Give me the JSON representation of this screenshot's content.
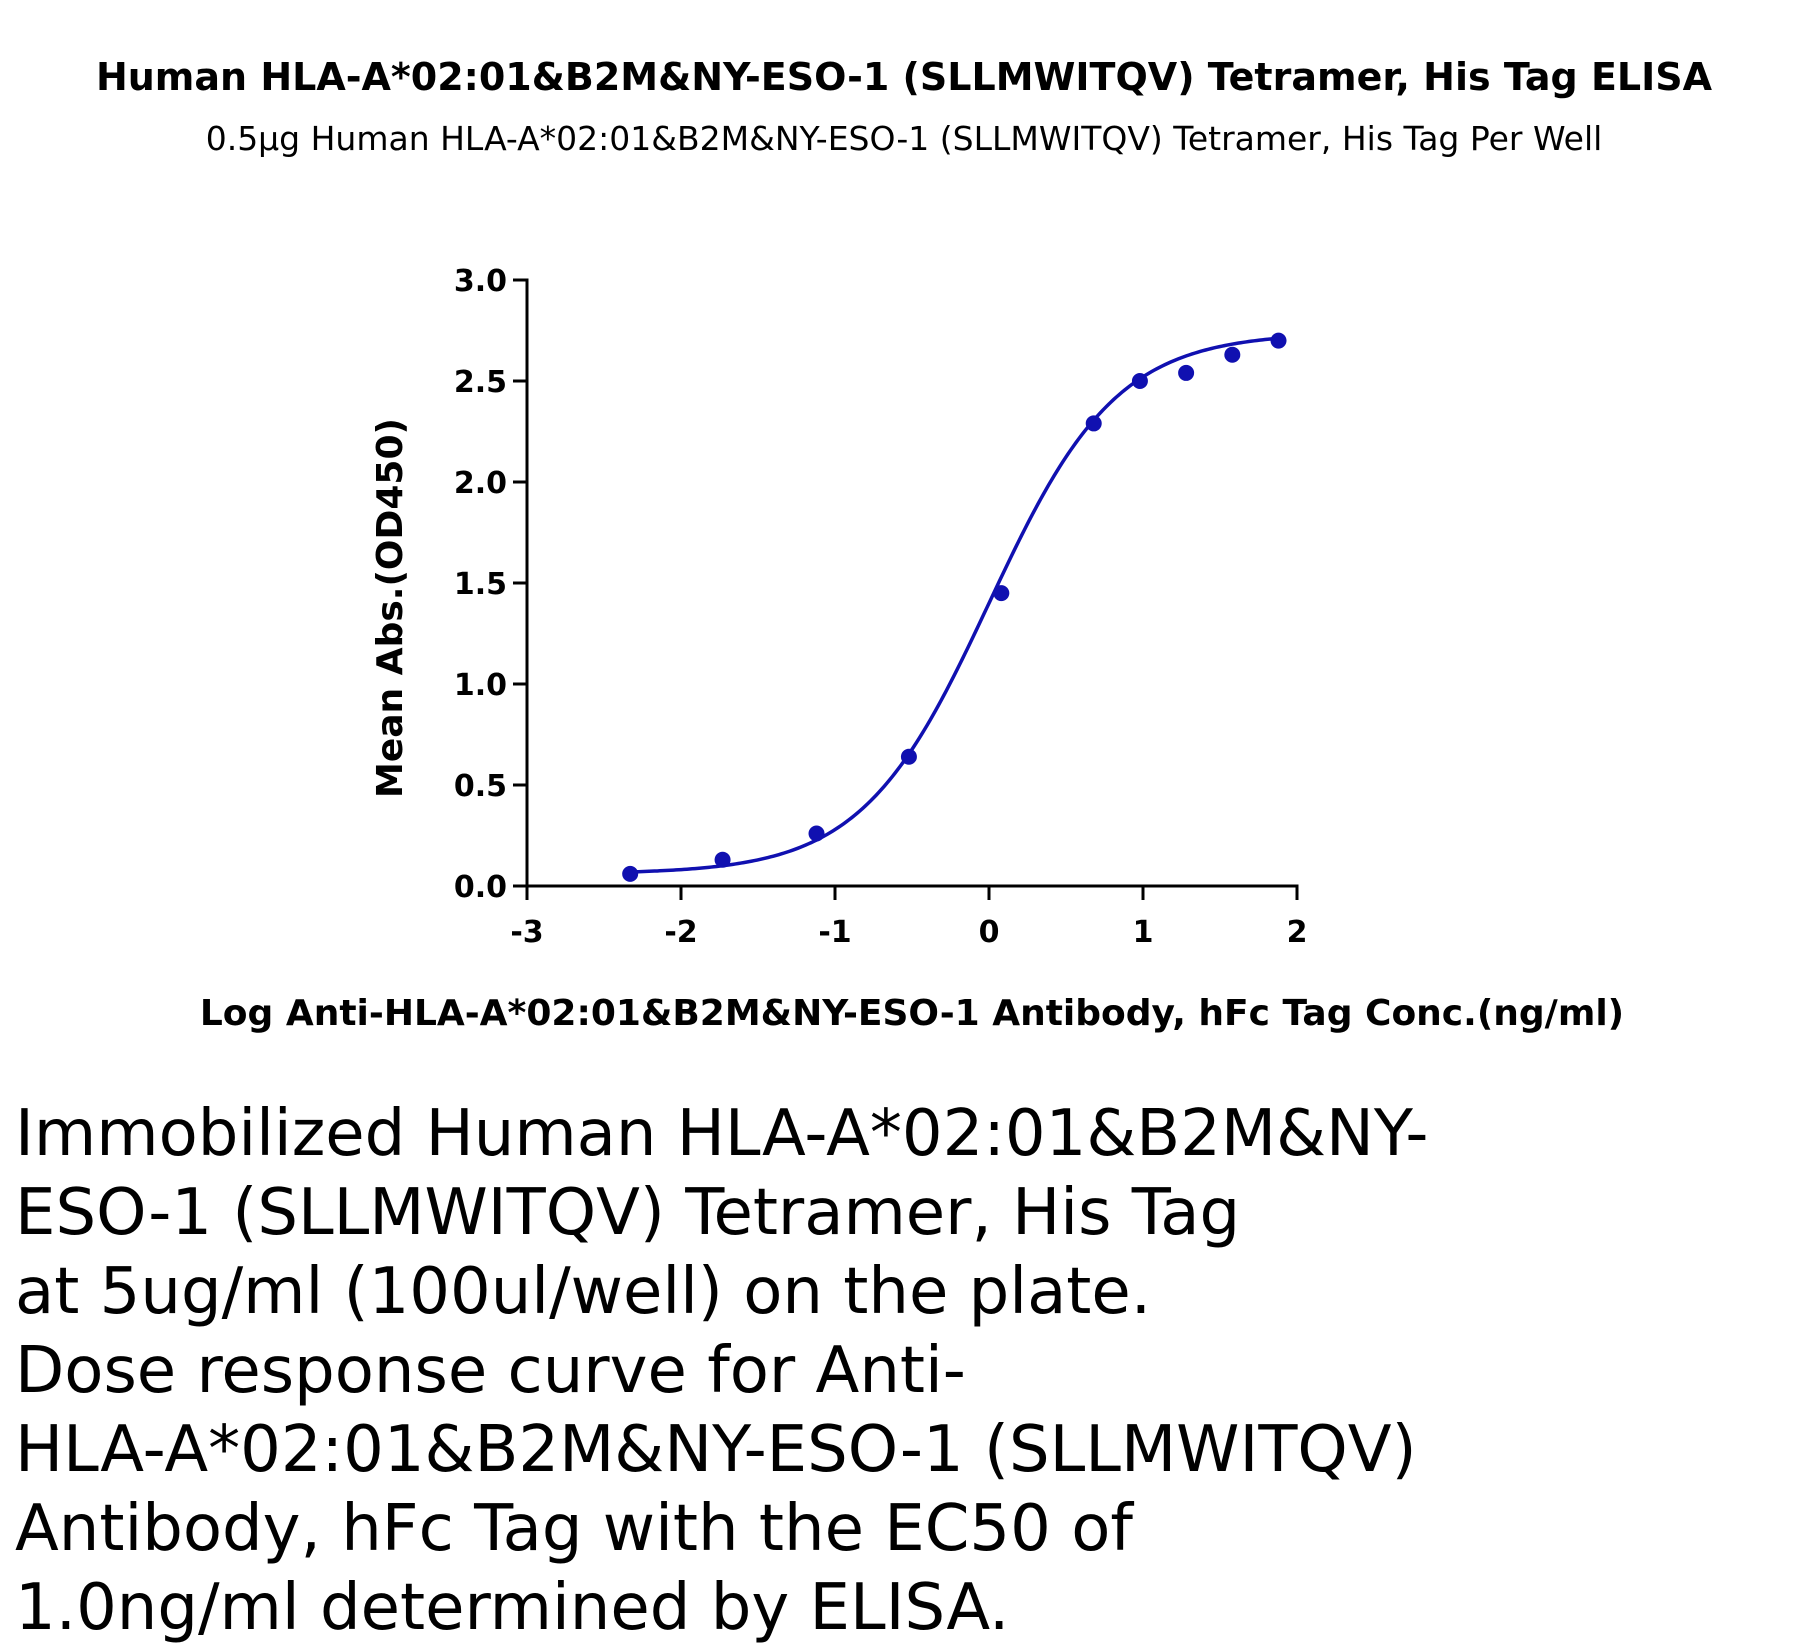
{
  "chart_data": {
    "type": "scatter",
    "title": "Human HLA-A*02:01&B2M&NY-ESO-1 (SLLMWITQV) Tetramer, His Tag ELISA",
    "subtitle": "0.5μg Human HLA-A*02:01&B2M&NY-ESO-1 (SLLMWITQV) Tetramer, His Tag Per Well",
    "xlabel": "Log Anti-HLA-A*02:01&B2M&NY-ESO-1 Antibody, hFc Tag Conc.(ng/ml)",
    "ylabel": "Mean Abs.(OD450)",
    "xlim": [
      -3,
      2
    ],
    "ylim": [
      0,
      3.0
    ],
    "xticks": [
      -3,
      -2,
      -1,
      0,
      1,
      2
    ],
    "xtick_labels": [
      "-3",
      "-2",
      "-1",
      "0",
      "1",
      "2"
    ],
    "yticks": [
      0,
      0.5,
      1.0,
      1.5,
      2.0,
      2.5,
      3.0
    ],
    "ytick_labels": [
      "0.0",
      "0.5",
      "1.0",
      "1.5",
      "2.0",
      "2.5",
      "3.0"
    ],
    "grid": false,
    "legend": "none",
    "color": "#1010b0",
    "series": [
      {
        "x": [
          -2.33,
          -1.73,
          -1.12,
          -0.52,
          0.08,
          0.68,
          0.98,
          1.28,
          1.58,
          1.88
        ],
        "y": [
          0.06,
          0.13,
          0.26,
          0.64,
          1.45,
          2.29,
          2.5,
          2.54,
          2.63,
          2.7
        ]
      }
    ],
    "fit": {
      "model": "4PL",
      "bottom": 0.06,
      "top": 2.74,
      "log_ec50": 0.0,
      "hill": 1.05
    }
  },
  "caption": "Immobilized Human HLA-A*02:01&B2M&NY-\nESO-1 (SLLMWITQV) Tetramer, His Tag\nat 5ug/ml (100ul/well) on the plate.\nDose response curve for Anti-\nHLA-A*02:01&B2M&NY-ESO-1 (SLLMWITQV)\nAntibody, hFc Tag with the EC50 of\n1.0ng/ml determined by ELISA."
}
